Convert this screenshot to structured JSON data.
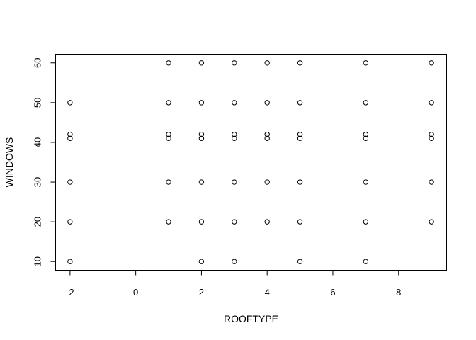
{
  "chart_data": {
    "type": "scatter",
    "title": "",
    "xlabel": "ROOFTYPE",
    "ylabel": "WINDOWS",
    "xlim": [
      -2.45,
      9.45
    ],
    "ylim": [
      7.9,
      62.1
    ],
    "xticks": [
      -2,
      0,
      2,
      4,
      6,
      8
    ],
    "yticks": [
      10,
      20,
      30,
      40,
      50,
      60
    ],
    "grid": false,
    "legend": "none",
    "points": [
      {
        "x": -2,
        "y": 50
      },
      {
        "x": -2,
        "y": 42
      },
      {
        "x": -2,
        "y": 41
      },
      {
        "x": -2,
        "y": 30
      },
      {
        "x": -2,
        "y": 20
      },
      {
        "x": -2,
        "y": 10
      },
      {
        "x": 1,
        "y": 60
      },
      {
        "x": 1,
        "y": 50
      },
      {
        "x": 1,
        "y": 42
      },
      {
        "x": 1,
        "y": 41
      },
      {
        "x": 1,
        "y": 30
      },
      {
        "x": 1,
        "y": 20
      },
      {
        "x": 2,
        "y": 60
      },
      {
        "x": 2,
        "y": 50
      },
      {
        "x": 2,
        "y": 42
      },
      {
        "x": 2,
        "y": 41
      },
      {
        "x": 2,
        "y": 30
      },
      {
        "x": 2,
        "y": 20
      },
      {
        "x": 2,
        "y": 10
      },
      {
        "x": 3,
        "y": 60
      },
      {
        "x": 3,
        "y": 50
      },
      {
        "x": 3,
        "y": 42
      },
      {
        "x": 3,
        "y": 41
      },
      {
        "x": 3,
        "y": 30
      },
      {
        "x": 3,
        "y": 20
      },
      {
        "x": 3,
        "y": 10
      },
      {
        "x": 4,
        "y": 60
      },
      {
        "x": 4,
        "y": 50
      },
      {
        "x": 4,
        "y": 42
      },
      {
        "x": 4,
        "y": 41
      },
      {
        "x": 4,
        "y": 30
      },
      {
        "x": 4,
        "y": 20
      },
      {
        "x": 5,
        "y": 60
      },
      {
        "x": 5,
        "y": 50
      },
      {
        "x": 5,
        "y": 42
      },
      {
        "x": 5,
        "y": 41
      },
      {
        "x": 5,
        "y": 30
      },
      {
        "x": 5,
        "y": 20
      },
      {
        "x": 5,
        "y": 10
      },
      {
        "x": 7,
        "y": 60
      },
      {
        "x": 7,
        "y": 50
      },
      {
        "x": 7,
        "y": 42
      },
      {
        "x": 7,
        "y": 41
      },
      {
        "x": 7,
        "y": 30
      },
      {
        "x": 7,
        "y": 20
      },
      {
        "x": 7,
        "y": 10
      },
      {
        "x": 9,
        "y": 60
      },
      {
        "x": 9,
        "y": 50
      },
      {
        "x": 9,
        "y": 42
      },
      {
        "x": 9,
        "y": 41
      },
      {
        "x": 9,
        "y": 30
      },
      {
        "x": 9,
        "y": 20
      }
    ]
  }
}
